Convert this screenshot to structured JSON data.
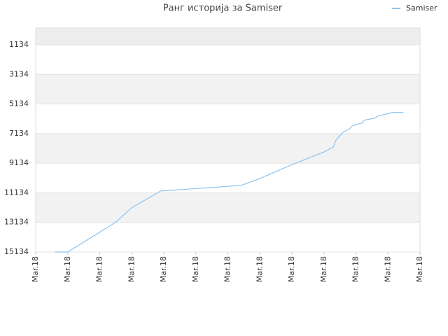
{
  "chart_data": {
    "type": "line",
    "title": "Ранг историја за Samiser",
    "x": [
      0.59,
      1.0,
      2.49,
      3.0,
      3.91,
      4.0,
      5.0,
      6.0,
      6.45,
      7.0,
      8.0,
      9.0,
      9.29,
      9.38,
      9.6,
      9.81,
      9.88,
      10.19,
      10.25,
      10.58,
      10.69,
      10.97,
      11.13,
      11.48
    ],
    "series": [
      {
        "name": "Samiser",
        "color": "#8ec4ee",
        "values": [
          15134,
          15134,
          13134,
          12140,
          11000,
          11000,
          10850,
          10700,
          10610,
          10170,
          9230,
          8380,
          8050,
          7560,
          7040,
          6800,
          6610,
          6420,
          6230,
          6090,
          5950,
          5800,
          5710,
          5710
        ]
      }
    ],
    "ylim": [
      15134,
      0
    ],
    "yticks": [
      1134,
      3134,
      5134,
      7134,
      9134,
      11134,
      13134,
      15134
    ],
    "xlim": [
      0,
      12
    ],
    "xticks": [
      {
        "value": 0,
        "label": "Mar.18"
      },
      {
        "value": 1,
        "label": "Mar.18"
      },
      {
        "value": 2,
        "label": "Mar.18"
      },
      {
        "value": 3,
        "label": "Mar.18"
      },
      {
        "value": 4,
        "label": "Mar.18"
      },
      {
        "value": 5,
        "label": "Mar.18"
      },
      {
        "value": 6,
        "label": "Mar.18"
      },
      {
        "value": 7,
        "label": "Mar.18"
      },
      {
        "value": 8,
        "label": "Mar.18"
      },
      {
        "value": 9,
        "label": "Mar.18"
      },
      {
        "value": 10,
        "label": "Mar.18"
      },
      {
        "value": 11,
        "label": "Mar.18"
      },
      {
        "value": 12,
        "label": "Mar.18"
      }
    ],
    "grid": true,
    "legend": "top-right"
  }
}
